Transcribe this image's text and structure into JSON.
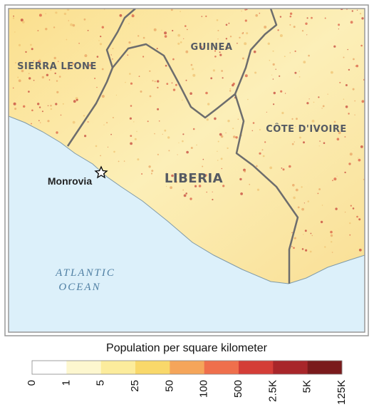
{
  "map": {
    "countries": [
      "SIERRA LEONE",
      "GUINEA",
      "CÔTE D'IVOIRE",
      "LIBERIA"
    ],
    "city": "Monrovia",
    "ocean": [
      "ATLANTIC",
      "OCEAN"
    ]
  },
  "legend": {
    "title": "Population per square kilometer",
    "ticks": [
      "0",
      "1",
      "5",
      "25",
      "50",
      "100",
      "500",
      "2.5K",
      "5K",
      "125K"
    ],
    "colors": [
      "#ffffff",
      "#fdf7cf",
      "#fcec9c",
      "#f9d86a",
      "#f5a55a",
      "#ef6f4c",
      "#d43d37",
      "#a8262a",
      "#7a1a1c"
    ]
  }
}
